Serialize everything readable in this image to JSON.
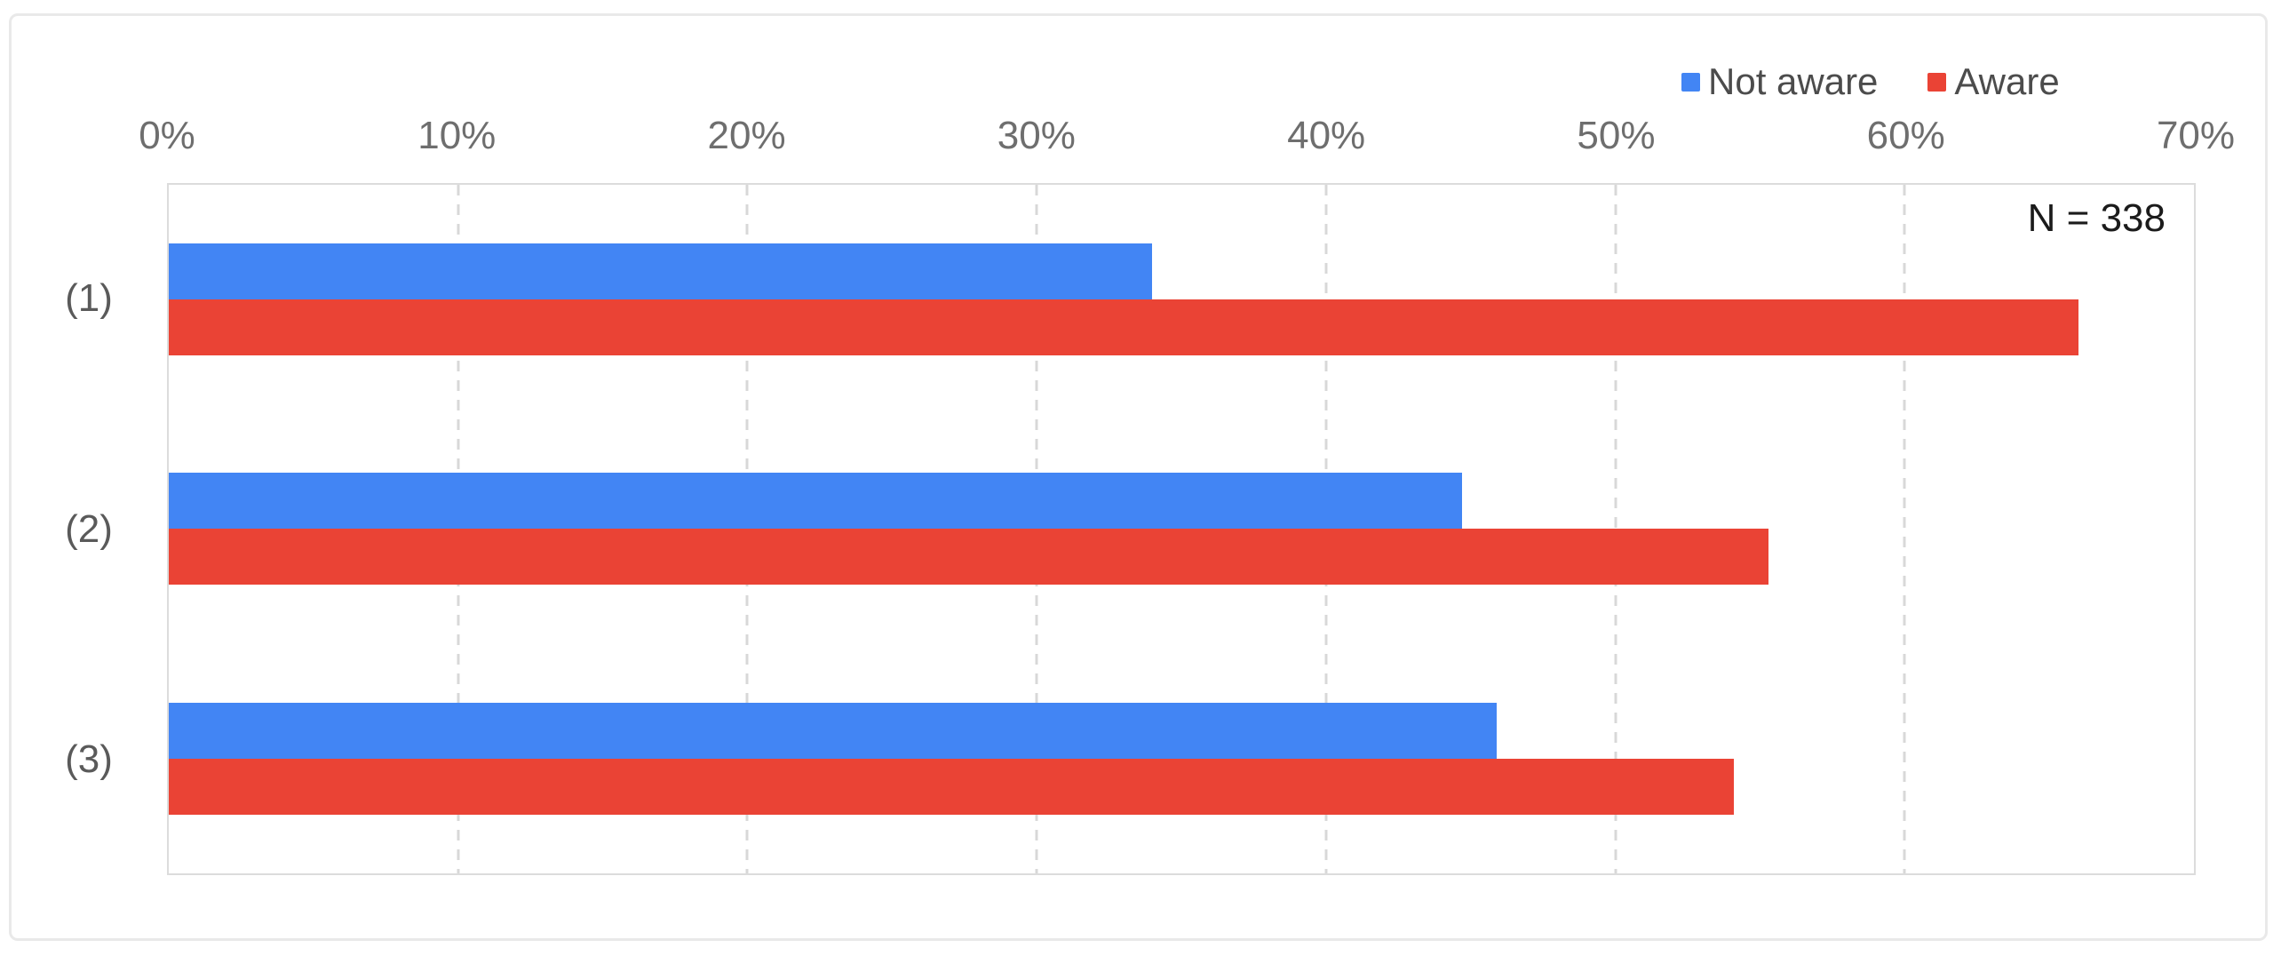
{
  "chart_data": {
    "type": "bar",
    "orientation": "horizontal",
    "title": "",
    "categories": [
      "(1)",
      "(2)",
      "(3)"
    ],
    "series": [
      {
        "name": "Not aware",
        "color": "#4285F4",
        "values": [
          34.0,
          44.7,
          45.9
        ]
      },
      {
        "name": "Aware",
        "color": "#EA4335",
        "values": [
          66.0,
          55.3,
          54.1
        ]
      }
    ],
    "annotation": "N = 338",
    "axis": {
      "position": "top",
      "min": 0,
      "max": 70,
      "step": 10,
      "tick_labels": [
        "0%",
        "10%",
        "20%",
        "30%",
        "40%",
        "50%",
        "60%",
        "70%"
      ]
    },
    "legend_position": "top-right",
    "grid": "vertical-dashed",
    "xlabel": "",
    "ylabel": ""
  },
  "colors": {
    "bar_blue": "#4285F4",
    "bar_red": "#EA4335",
    "gridline": "#d8d8d8",
    "plot_border": "#dcdcdc",
    "figure_border": "#e9e9e9",
    "tick_text": "#6e6e6e",
    "category_text": "#5a5a5a",
    "legend_text": "#4c4c4c",
    "annotation_text": "#1b1b1b",
    "background": "#ffffff"
  }
}
